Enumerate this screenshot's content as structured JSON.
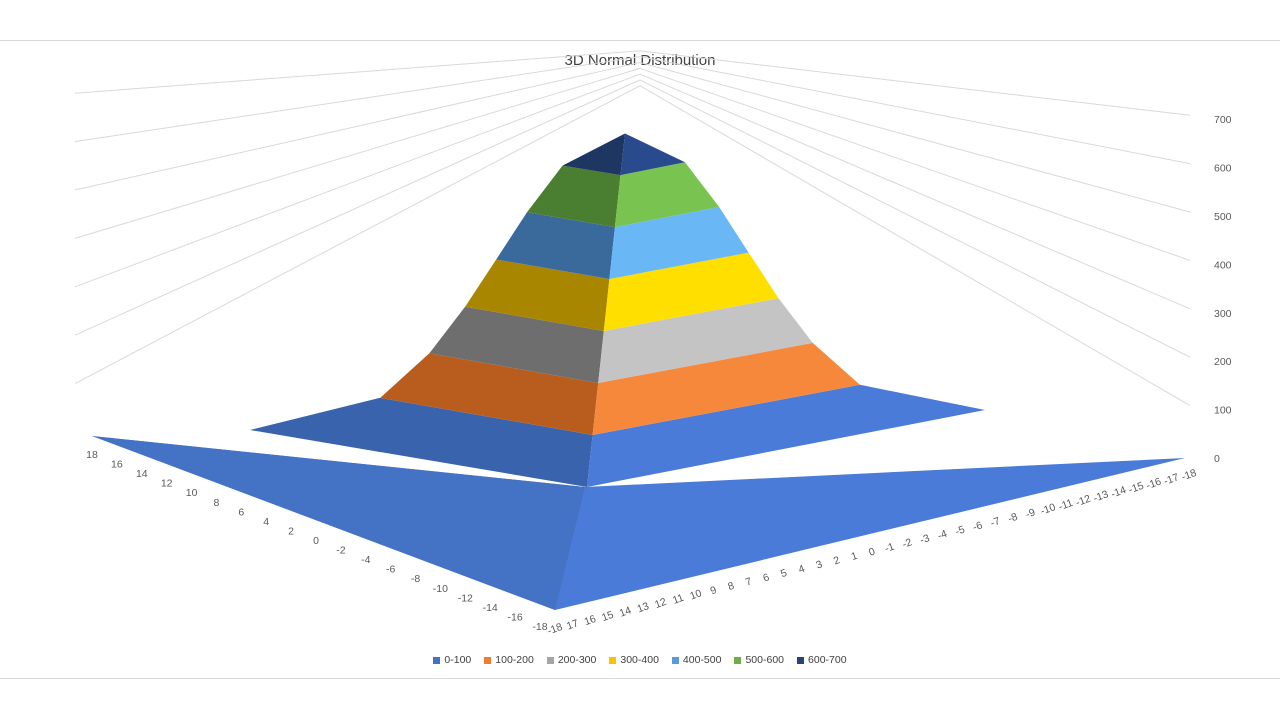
{
  "chart_data": {
    "type": "surface",
    "title": "3D Normal Distribution",
    "value_axis": {
      "min": 0,
      "max": 700,
      "step": 100,
      "ticks": [
        "0",
        "100",
        "200",
        "300",
        "400",
        "500",
        "600",
        "700"
      ]
    },
    "left_axis_ticks": [
      "18",
      "16",
      "14",
      "12",
      "10",
      "8",
      "6",
      "4",
      "2",
      "0",
      "-2",
      "-4",
      "-6",
      "-8",
      "-10",
      "-12",
      "-14",
      "-16",
      "-18"
    ],
    "right_axis_ticks": [
      "-18",
      "17",
      "16",
      "15",
      "14",
      "13",
      "12",
      "11",
      "10",
      "9",
      "8",
      "7",
      "6",
      "5",
      "4",
      "3",
      "2",
      "1",
      "0",
      "-1",
      "-2",
      "-3",
      "-4",
      "-5",
      "-6",
      "-7",
      "-8",
      "-9",
      "-10",
      "-11",
      "-12",
      "-13",
      "-14",
      "-15",
      "-16",
      "-17",
      "-18"
    ],
    "peak_value": 680,
    "legend_position": "bottom",
    "bands": [
      {
        "name": "0-100",
        "color": "#4472c4",
        "front": "#4a7bd8",
        "dark": "#3a63ad"
      },
      {
        "name": "100-200",
        "color": "#ed7d31",
        "front": "#f6883c",
        "dark": "#b85d1e"
      },
      {
        "name": "200-300",
        "color": "#a5a5a5",
        "front": "#c4c4c4",
        "dark": "#6e6e6e"
      },
      {
        "name": "300-400",
        "color": "#ffc000",
        "front": "#ffdf00",
        "dark": "#a88600"
      },
      {
        "name": "400-500",
        "color": "#5b9bd5",
        "front": "#69b7f5",
        "dark": "#3a6a9c"
      },
      {
        "name": "500-600",
        "color": "#70ad47",
        "front": "#79c450",
        "dark": "#4a7e30"
      },
      {
        "name": "600-700",
        "color": "#264478",
        "front": "#2a4a8e",
        "dark": "#1e3662"
      }
    ]
  }
}
